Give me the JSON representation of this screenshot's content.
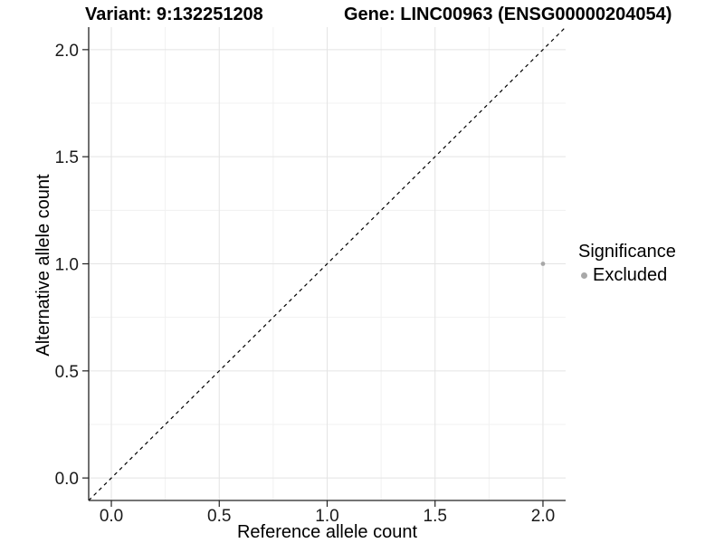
{
  "titles": {
    "variant": "Variant: 9:132251208",
    "gene": "Gene: LINC00963 (ENSG00000204054)"
  },
  "chart_data": {
    "type": "scatter",
    "title_left": "Variant: 9:132251208",
    "title_right": "Gene: LINC00963 (ENSG00000204054)",
    "xlabel": "Reference allele count",
    "ylabel": "Alternative allele count",
    "xlim": [
      -0.105,
      2.105
    ],
    "ylim": [
      -0.105,
      2.105
    ],
    "x_tick_values": [
      0,
      0.5,
      1,
      1.5,
      2
    ],
    "x_tick_labels": [
      "0.0",
      "0.5",
      "1.0",
      "1.5",
      "2.0"
    ],
    "y_tick_values": [
      0,
      0.5,
      1,
      1.5,
      2
    ],
    "y_tick_labels": [
      "0.0",
      "0.5",
      "1.0",
      "1.5",
      "2.0"
    ],
    "x_minor_values": [
      0.25,
      0.75,
      1.25,
      1.75
    ],
    "y_minor_values": [
      0.25,
      0.75,
      1.25,
      1.75
    ],
    "grid": true,
    "identity_line": {
      "style": "dashed",
      "color": "#000000",
      "slope": 1,
      "intercept": 0
    },
    "series": [
      {
        "name": "Excluded",
        "color": "#a8a8a8",
        "points": [
          {
            "x": 2.0,
            "y": 1.0
          }
        ]
      }
    ],
    "legend": {
      "title": "Significance",
      "position": "right",
      "items": [
        {
          "label": "Excluded",
          "color": "#a8a8a8",
          "marker": "circle"
        }
      ]
    }
  },
  "colors": {
    "background": "#ffffff",
    "grid_major": "#e4e4e4",
    "grid_minor": "#f1f1f1",
    "axis_line": "#222222",
    "tick_mark": "#222222",
    "tick_label": "#1a1a1a",
    "point": "#a8a8a8",
    "reference_line": "#000000"
  }
}
